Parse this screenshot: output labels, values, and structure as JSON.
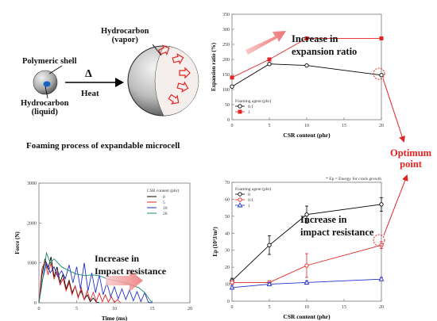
{
  "schematic": {
    "hydrocarbon_vapor_label": "Hydrocarbon\n(vapor)",
    "polymeric_shell_label": "Polymeric shell",
    "hydrocarbon_liquid_label": "Hydrocarbon\n(liquid)",
    "heat_label": "Heat",
    "heat_symbol": "Δ",
    "caption": "Foaming process of expandable microcell"
  },
  "optimum_label": "Optimum\npoint",
  "chart_data": [
    {
      "type": "line",
      "id": "expansion",
      "ylabel": "Expansion ratio (%)",
      "xlabel": "CSR content (phr)",
      "x": [
        0,
        5,
        10,
        20
      ],
      "xticks": [
        "0",
        "5",
        "10",
        "15",
        "20"
      ],
      "yticks": [
        "0",
        "50",
        "100",
        "150",
        "200",
        "250",
        "300",
        "350"
      ],
      "xlim": [
        0,
        20
      ],
      "ylim": [
        0,
        350
      ],
      "legend_title": "Foaming agent (phr)",
      "legend_position": "bottom-left",
      "series": [
        {
          "name": "0.1",
          "values": [
            110,
            185,
            180,
            148
          ],
          "color": "#000000",
          "marker": "circle-open"
        },
        {
          "name": "1",
          "values": [
            140,
            200,
            270,
            270
          ],
          "color": "#e32322",
          "marker": "square"
        }
      ],
      "annotation": "Increase in\nexpansion ratio"
    },
    {
      "type": "line",
      "id": "force",
      "ylabel": "Force (N)",
      "xlabel": "Time (ms)",
      "xticks": [
        "0",
        "5",
        "10",
        "15",
        "20"
      ],
      "yticks": [
        "0",
        "1000",
        "2000",
        "3000"
      ],
      "xlim": [
        0,
        20
      ],
      "ylim": [
        0,
        3000
      ],
      "legend_title": "CSR content (phr)",
      "legend_position": "top-right",
      "series": [
        {
          "name": "0",
          "color": "#000000",
          "x": [
            0,
            0.4,
            0.8,
            1.2,
            1.6,
            2.0,
            2.4,
            2.8,
            3.2,
            3.6,
            4.0,
            4.4,
            4.8,
            5.2,
            5.6,
            6.0,
            6.4,
            6.8,
            7.2,
            7.6,
            8.0
          ],
          "values": [
            0,
            700,
            1100,
            850,
            1150,
            650,
            900,
            500,
            720,
            350,
            560,
            250,
            420,
            150,
            300,
            80,
            200,
            30,
            120,
            20,
            0
          ]
        },
        {
          "name": "5",
          "color": "#e32322",
          "x": [
            0,
            0.4,
            0.8,
            1.2,
            1.6,
            2.0,
            2.4,
            2.8,
            3.2,
            3.6,
            4.0,
            4.4,
            4.8,
            5.2,
            5.6,
            6.0,
            6.4,
            6.8,
            7.2,
            7.6,
            8.0,
            8.4,
            8.8,
            9.2,
            9.6,
            10.0,
            10.4,
            10.8
          ],
          "values": [
            0,
            850,
            1050,
            700,
            1000,
            600,
            780,
            450,
            600,
            300,
            500,
            200,
            420,
            120,
            380,
            80,
            300,
            60,
            260,
            40,
            240,
            30,
            200,
            20,
            150,
            10,
            80,
            0
          ]
        },
        {
          "name": "10",
          "color": "#1f2fcf",
          "x": [
            0,
            0.5,
            1.0,
            1.5,
            2.0,
            2.5,
            3.0,
            3.5,
            4.0,
            4.5,
            5.0,
            5.5,
            6.0,
            6.5,
            7.0,
            7.5,
            8.0,
            8.5,
            9.0,
            9.5,
            10.0,
            10.5,
            11.0,
            11.5,
            12.0,
            12.5,
            13.0,
            13.5,
            14.0,
            14.5,
            15.0
          ],
          "values": [
            0,
            600,
            1000,
            750,
            900,
            650,
            800,
            600,
            950,
            500,
            900,
            350,
            1000,
            300,
            750,
            250,
            700,
            200,
            500,
            150,
            400,
            100,
            350,
            80,
            320,
            50,
            280,
            30,
            250,
            10,
            0
          ]
        },
        {
          "name": "20",
          "color": "#138a6a",
          "x": [
            0,
            0.5,
            1.0,
            1.5,
            2.0,
            3.0,
            4.0,
            5.0,
            6.0,
            7.0,
            8.0,
            9.0,
            10.0,
            11.0,
            11.8,
            12.5,
            13.2,
            14.0,
            14.5,
            15.0
          ],
          "values": [
            0,
            600,
            1250,
            1000,
            1100,
            900,
            800,
            720,
            680,
            700,
            680,
            600,
            560,
            520,
            480,
            430,
            380,
            260,
            120,
            0
          ]
        }
      ],
      "annotation": "Increase in\nImpact resistance"
    },
    {
      "type": "line",
      "id": "energy",
      "ylabel": "Ep (10³J/m²)",
      "xlabel": "CSR content (phr)",
      "x": [
        0,
        5,
        10,
        20
      ],
      "xticks": [
        "0",
        "5",
        "10",
        "15",
        "20"
      ],
      "yticks": [
        "0",
        "10",
        "20",
        "30",
        "40",
        "50",
        "60",
        "70"
      ],
      "xlim": [
        0,
        20
      ],
      "ylim": [
        0,
        70
      ],
      "note": "* Ep = Energy for crack growth",
      "legend_title": "Foaming agent (phr)",
      "legend_position": "top-left",
      "series": [
        {
          "name": "0",
          "values": [
            12,
            33,
            51,
            57
          ],
          "err": [
            1.5,
            5.5,
            5,
            4
          ],
          "color": "#000000",
          "marker": "circle-open"
        },
        {
          "name": "0.1",
          "values": [
            11,
            11,
            21,
            33
          ],
          "err": [
            1,
            1,
            7,
            2
          ],
          "color": "#e32322",
          "marker": "circle-open"
        },
        {
          "name": "1",
          "values": [
            8,
            10,
            11,
            13
          ],
          "err": [
            1,
            1,
            1,
            1
          ],
          "color": "#1f2fcf",
          "marker": "triangle-open"
        }
      ],
      "annotation": "Increase in\nimpact resistance"
    }
  ]
}
